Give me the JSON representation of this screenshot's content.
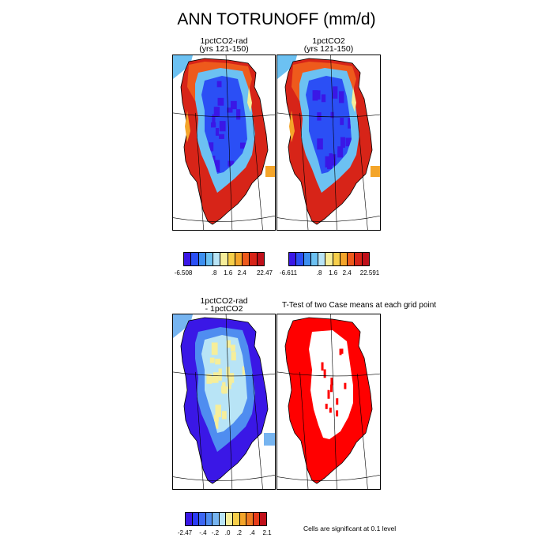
{
  "title": "ANN TOTRUNOFF (mm/d)",
  "panels": {
    "p1": {
      "title": "1pctCO2-rad\n(yrs 121-150)"
    },
    "p2": {
      "title": "1pctCO2\n(yrs 121-150)"
    },
    "p3": {
      "title": "1pctCO2-rad\n- 1pctCO2"
    },
    "p4": {
      "title": "T-Test of two Case means at each grid point"
    }
  },
  "colorbars": {
    "cb1": {
      "labels": [
        "-6.508",
        ".8",
        "1.6",
        "2.4",
        "22.47"
      ]
    },
    "cb2": {
      "labels": [
        "-6.611",
        ".8",
        "1.6",
        "2.4",
        "22.591"
      ]
    },
    "cb3": {
      "labels": [
        "-2.47",
        "-.4",
        "-.2",
        ".0",
        ".2",
        ".4",
        "2.1"
      ]
    }
  },
  "note": "Cells are significant at 0.1 level",
  "palette_abs": [
    "#3a17e6",
    "#2b4ff5",
    "#3c8ff0",
    "#6cc1f2",
    "#b8e4f6",
    "#f6ee9a",
    "#f7cf4a",
    "#f4a52a",
    "#ee5a1c",
    "#d72418",
    "#c0101a"
  ],
  "palette_diff": [
    "#3a17e6",
    "#2b3cf5",
    "#3c66f2",
    "#4f8df0",
    "#76b4f0",
    "#b8e4f6",
    "#f6ee9a",
    "#f7cf4a",
    "#f4a52a",
    "#ee7a22",
    "#e83c1a",
    "#c0101a"
  ],
  "significance_color": "#ff0000"
}
